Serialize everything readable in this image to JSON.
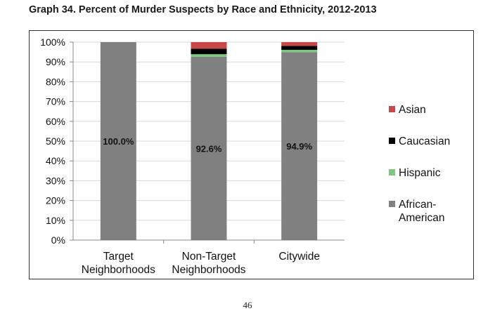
{
  "page": {
    "title": "Graph 34. Percent of Murder Suspects by Race and Ethnicity, 2012-2013",
    "page_number": "46"
  },
  "chart_data": {
    "type": "bar",
    "stacked": true,
    "title": "Graph 34. Percent of Murder Suspects by Race and Ethnicity, 2012-2013",
    "xlabel": "",
    "ylabel": "",
    "ylim": [
      0,
      100
    ],
    "y_ticks": [
      "0%",
      "10%",
      "20%",
      "30%",
      "40%",
      "50%",
      "60%",
      "70%",
      "80%",
      "90%",
      "100%"
    ],
    "categories": [
      [
        "Target",
        "Neighborhoods"
      ],
      [
        "Non-Target",
        "Neighborhoods"
      ],
      [
        "Citywide"
      ]
    ],
    "series": [
      {
        "name": "African-American",
        "color": "#808080",
        "values": [
          100.0,
          92.6,
          94.9
        ],
        "labels": [
          "100.0%",
          "92.6%",
          "94.9%"
        ]
      },
      {
        "name": "Hispanic",
        "color": "#7cc87c",
        "values": [
          0.0,
          1.3,
          1.2
        ]
      },
      {
        "name": "Caucasian",
        "color": "#000000",
        "values": [
          0.0,
          2.8,
          2.0
        ]
      },
      {
        "name": "Asian",
        "color": "#c84848",
        "values": [
          0.0,
          3.3,
          1.9
        ]
      }
    ],
    "legend": {
      "placement": "right",
      "entries": [
        {
          "lines": [
            "Asian"
          ],
          "color": "#c84848"
        },
        {
          "lines": [
            "Caucasian"
          ],
          "color": "#000000"
        },
        {
          "lines": [
            "Hispanic"
          ],
          "color": "#7cc87c"
        },
        {
          "lines": [
            "African-",
            "American"
          ],
          "color": "#808080"
        }
      ]
    },
    "grid": true
  }
}
